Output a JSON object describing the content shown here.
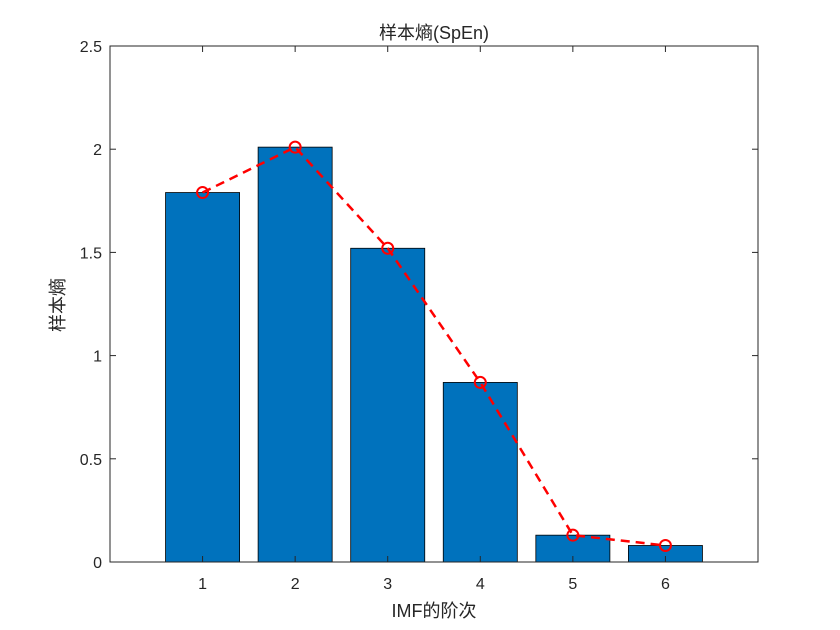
{
  "chart_data": {
    "type": "bar",
    "title": "样本熵(SpEn)",
    "xlabel": "IMF的阶次",
    "ylabel": "样本熵",
    "categories": [
      "1",
      "2",
      "3",
      "4",
      "5",
      "6"
    ],
    "x": [
      1,
      2,
      3,
      4,
      5,
      6
    ],
    "xlim": [
      0,
      7
    ],
    "ylim": [
      0,
      2.5
    ],
    "yticks": [
      0,
      0.5,
      1,
      1.5,
      2,
      2.5
    ],
    "ytick_labels": [
      "0",
      "0.5",
      "1",
      "1.5",
      "2",
      "2.5"
    ],
    "grid": false,
    "series": [
      {
        "type": "bar",
        "values": [
          1.79,
          2.01,
          1.52,
          0.87,
          0.13,
          0.08
        ],
        "color": "#0072BD"
      },
      {
        "type": "line",
        "style": "dashed",
        "marker": "circle",
        "values": [
          1.79,
          2.01,
          1.52,
          0.87,
          0.13,
          0.08
        ],
        "color": "#FF0000"
      }
    ]
  }
}
